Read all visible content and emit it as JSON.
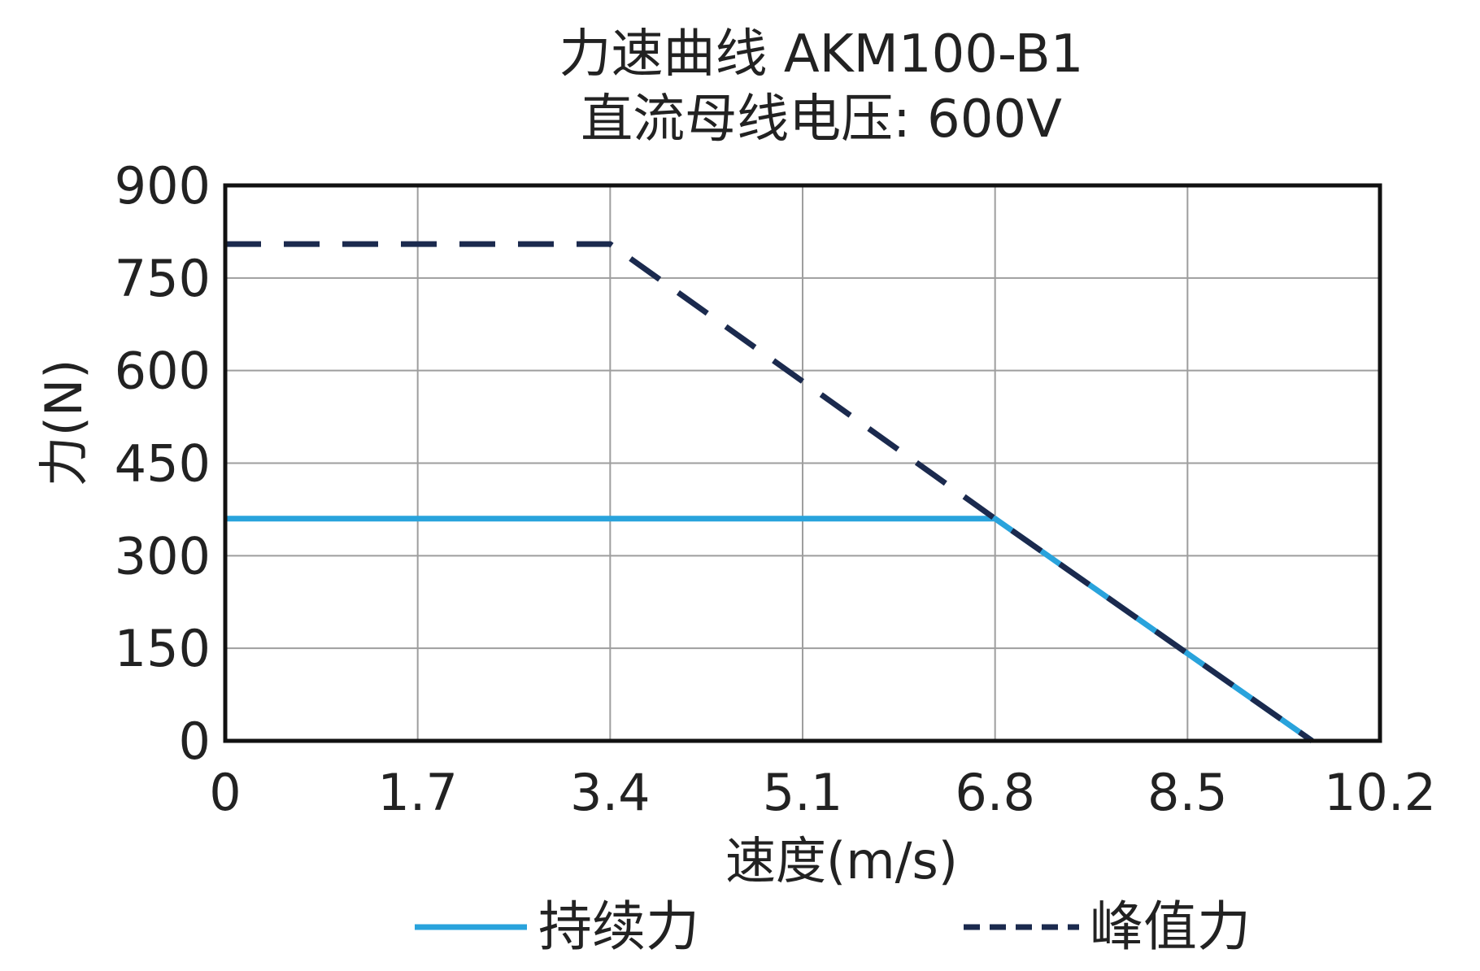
{
  "chart_data": {
    "type": "line",
    "title": "力速曲线 AKM100-B1",
    "subtitle": "直流母线电压: 600V",
    "xlabel": "速度(m/s)",
    "ylabel": "力(N)",
    "xlim": [
      0,
      10.2
    ],
    "ylim": [
      0,
      900
    ],
    "xticks": [
      "0",
      "1.7",
      "3.4",
      "5.1",
      "6.8",
      "8.5",
      "10.2"
    ],
    "yticks": [
      "0",
      "150",
      "300",
      "450",
      "600",
      "750",
      "900"
    ],
    "grid": true,
    "legend_position": "bottom",
    "series": [
      {
        "name": "持续力",
        "style": "solid",
        "color": "#29a3dc",
        "x": [
          0,
          6.8,
          9.6
        ],
        "y": [
          360,
          360,
          0
        ]
      },
      {
        "name": "峰值力",
        "style": "dashed",
        "color": "#1b2a4e",
        "x": [
          0,
          3.4,
          6.8,
          9.6
        ],
        "y": [
          805,
          805,
          360,
          0
        ]
      }
    ]
  }
}
